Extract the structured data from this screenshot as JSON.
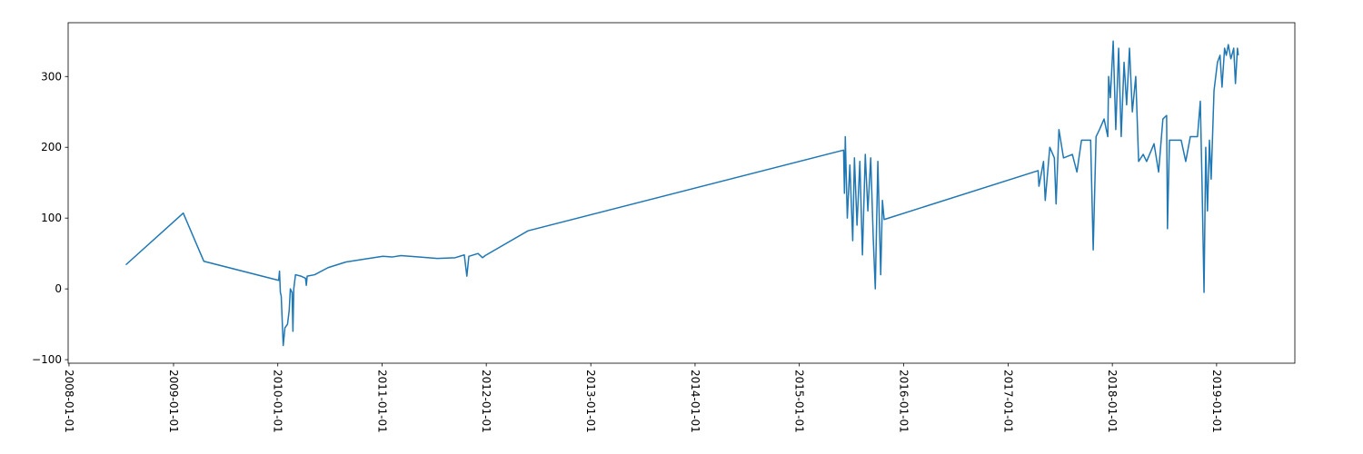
{
  "chart_data": {
    "type": "line",
    "color": "#1f77b4",
    "x": [
      "2008-07-18",
      "2009-02-04",
      "2009-04-17",
      "2010-01-04",
      "2010-01-07",
      "2010-01-10",
      "2010-01-13",
      "2010-01-20",
      "2010-01-26",
      "2010-02-04",
      "2010-02-10",
      "2010-02-14",
      "2010-02-20",
      "2010-02-23",
      "2010-02-26",
      "2010-03-04",
      "2010-03-23",
      "2010-04-08",
      "2010-04-11",
      "2010-04-14",
      "2010-05-10",
      "2010-06-26",
      "2010-08-28",
      "2010-10-31",
      "2011-01-04",
      "2011-02-05",
      "2011-03-08",
      "2011-05-10",
      "2011-07-13",
      "2011-09-14",
      "2011-10-16",
      "2011-10-25",
      "2011-11-01",
      "2011-12-03",
      "2011-12-19",
      "2011-12-28",
      "2012-05-26",
      "2015-06-05",
      "2015-06-08",
      "2015-06-11",
      "2015-06-18",
      "2015-06-27",
      "2015-07-07",
      "2015-07-13",
      "2015-07-22",
      "2015-08-01",
      "2015-08-10",
      "2015-08-20",
      "2015-08-29",
      "2015-09-08",
      "2015-09-17",
      "2015-09-24",
      "2015-10-03",
      "2015-10-13",
      "2015-10-19",
      "2015-10-25",
      "2017-04-16",
      "2017-04-19",
      "2017-05-05",
      "2017-05-11",
      "2017-05-27",
      "2017-06-12",
      "2017-06-18",
      "2017-06-28",
      "2017-07-14",
      "2017-08-14",
      "2017-08-30",
      "2017-09-15",
      "2017-10-17",
      "2017-10-26",
      "2017-11-05",
      "2017-11-17",
      "2017-12-03",
      "2017-12-16",
      "2017-12-19",
      "2017-12-25",
      "2018-01-04",
      "2018-01-13",
      "2018-01-23",
      "2018-02-01",
      "2018-02-11",
      "2018-02-20",
      "2018-03-02",
      "2018-03-12",
      "2018-03-24",
      "2018-04-03",
      "2018-04-19",
      "2018-05-01",
      "2018-05-27",
      "2018-06-12",
      "2018-06-27",
      "2018-07-10",
      "2018-07-13",
      "2018-07-20",
      "2018-08-30",
      "2018-09-15",
      "2018-10-01",
      "2018-10-26",
      "2018-11-05",
      "2018-11-11",
      "2018-11-18",
      "2018-11-24",
      "2018-11-30",
      "2018-12-07",
      "2018-12-13",
      "2018-12-23",
      "2019-01-04",
      "2019-01-13",
      "2019-01-20",
      "2019-01-29",
      "2019-02-04",
      "2019-02-11",
      "2019-02-20",
      "2019-03-02",
      "2019-03-08",
      "2019-03-15",
      "2019-03-18"
    ],
    "values": [
      34,
      107,
      39,
      12,
      25,
      -5,
      -10,
      -80,
      -55,
      -50,
      -30,
      0,
      -5,
      -60,
      0,
      20,
      18,
      15,
      5,
      18,
      20,
      30,
      38,
      42,
      46,
      45,
      47,
      45,
      43,
      44,
      48,
      18,
      46,
      50,
      44,
      47,
      82,
      196,
      135,
      215,
      100,
      175,
      68,
      185,
      90,
      180,
      48,
      190,
      110,
      185,
      70,
      0,
      180,
      20,
      125,
      98,
      167,
      145,
      180,
      125,
      200,
      185,
      120,
      225,
      185,
      190,
      165,
      210,
      210,
      55,
      215,
      225,
      240,
      215,
      300,
      270,
      350,
      225,
      340,
      215,
      320,
      260,
      340,
      250,
      300,
      180,
      190,
      180,
      205,
      165,
      240,
      245,
      85,
      210,
      210,
      180,
      215,
      215,
      265,
      150,
      -5,
      200,
      110,
      210,
      155,
      280,
      320,
      330,
      285,
      340,
      330,
      345,
      325,
      340,
      290,
      340,
      330
    ],
    "xlim": [
      "2007-12-29",
      "2019-10-02"
    ],
    "xticks": [
      "2008-01-01",
      "2009-01-01",
      "2010-01-01",
      "2011-01-01",
      "2012-01-01",
      "2013-01-01",
      "2014-01-01",
      "2015-01-01",
      "2016-01-01",
      "2017-01-01",
      "2018-01-01",
      "2019-01-01"
    ],
    "ylim": [
      -105,
      376
    ],
    "yticks": [
      {
        "value": -100,
        "label": "−100"
      },
      0,
      100,
      200,
      300
    ]
  }
}
